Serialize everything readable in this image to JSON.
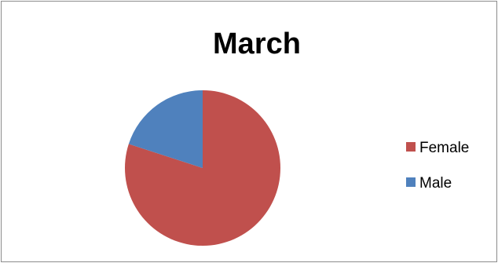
{
  "chart_data": {
    "type": "pie",
    "title": "March",
    "categories": [
      "Female",
      "Male"
    ],
    "values": [
      80,
      20
    ],
    "colors": [
      "#c0504d",
      "#4f81bd"
    ],
    "start_angle": "12 o'clock",
    "direction": "clockwise",
    "legend_position": "right"
  }
}
